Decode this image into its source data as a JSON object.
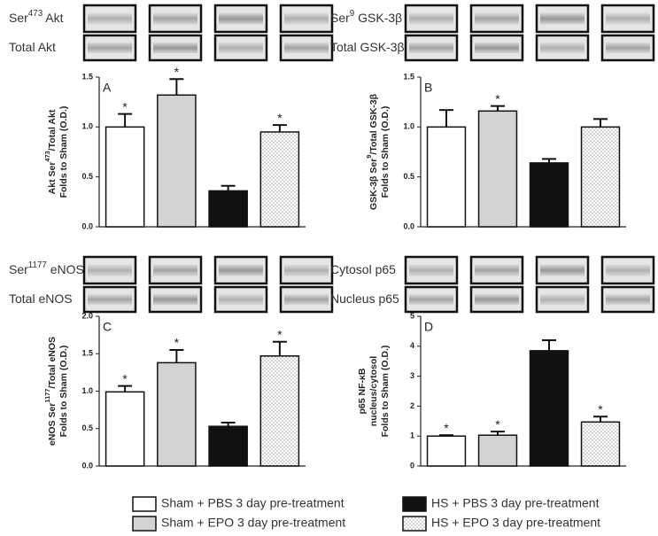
{
  "chart_data": [
    {
      "type": "bar",
      "panel": "A",
      "blot_labels": [
        [
          "Ser",
          "473",
          " Akt"
        ],
        [
          "Total Akt"
        ]
      ],
      "ylabel": [
        [
          "Akt Ser",
          "473",
          "/Total Akt"
        ],
        [
          "Folds to Sham (O.D.)"
        ]
      ],
      "values": [
        1.0,
        1.32,
        0.36,
        0.95
      ],
      "errors": [
        0.13,
        0.16,
        0.05,
        0.07
      ],
      "annotations": [
        "*",
        "*",
        null,
        "*"
      ],
      "ylim": [
        0,
        1.5
      ],
      "yticks": [
        {
          "value": 0,
          "label": "0.0"
        },
        0.5,
        {
          "value": 1,
          "label": "1.0"
        },
        1.5
      ]
    },
    {
      "type": "bar",
      "panel": "B",
      "blot_labels": [
        [
          "Ser",
          "9",
          " GSK-3β"
        ],
        [
          "Total GSK-3β"
        ]
      ],
      "ylabel": [
        [
          "GSK-3β Ser",
          "9",
          "/Total GSK-3β"
        ],
        [
          "Folds to Sham (O.D.)"
        ]
      ],
      "values": [
        1.0,
        1.16,
        0.64,
        1.0
      ],
      "errors": [
        0.17,
        0.05,
        0.04,
        0.08
      ],
      "annotations": [
        null,
        "*",
        null,
        null
      ],
      "ylim": [
        0,
        1.5
      ],
      "yticks": [
        {
          "value": 0,
          "label": "0.0"
        },
        0.5,
        {
          "value": 1,
          "label": "1.0"
        },
        1.5
      ]
    },
    {
      "type": "bar",
      "panel": "C",
      "blot_labels": [
        [
          "Ser",
          "1177",
          " eNOS"
        ],
        [
          "Total eNOS"
        ]
      ],
      "ylabel": [
        [
          "eNOS Ser",
          "1177",
          "/Total eNOS"
        ],
        [
          "Folds to Sham (O.D.)"
        ]
      ],
      "values": [
        0.99,
        1.38,
        0.53,
        1.47
      ],
      "errors": [
        0.08,
        0.17,
        0.05,
        0.19
      ],
      "annotations": [
        "*",
        "*",
        null,
        "*"
      ],
      "ylim": [
        0,
        2
      ],
      "yticks": [
        {
          "value": 0,
          "label": "0.0"
        },
        0.5,
        {
          "value": 1,
          "label": "1.0"
        },
        1.5,
        {
          "value": 2,
          "label": "2.0"
        }
      ]
    },
    {
      "type": "bar",
      "panel": "D",
      "blot_labels": [
        [
          "Cytosol p65"
        ],
        [
          "Nucleus p65"
        ]
      ],
      "ylabel": [
        [
          "p65 NF-κB"
        ],
        [
          "nucleus/cytosol"
        ],
        [
          "Folds to Sham (O.D.)"
        ]
      ],
      "values": [
        1.0,
        1.03,
        3.85,
        1.47
      ],
      "errors": [
        0.03,
        0.12,
        0.35,
        0.18
      ],
      "annotations": [
        "*",
        "*",
        null,
        "*"
      ],
      "ylim": [
        0,
        5
      ],
      "yticks": [
        0,
        1,
        2,
        3,
        4,
        5
      ]
    }
  ],
  "legend": [
    {
      "name": "Sham + PBS 3 day pre-treatment",
      "color": "#ffffff"
    },
    {
      "name": "Sham + EPO 3 day pre-treatment",
      "color": "#d3d3d3"
    },
    {
      "name": "HS + PBS 3 day pre-treatment",
      "color": "#111111"
    },
    {
      "name": "HS + EPO 3 day pre-treatment",
      "color": "#ffffff",
      "pattern": "dots"
    }
  ]
}
